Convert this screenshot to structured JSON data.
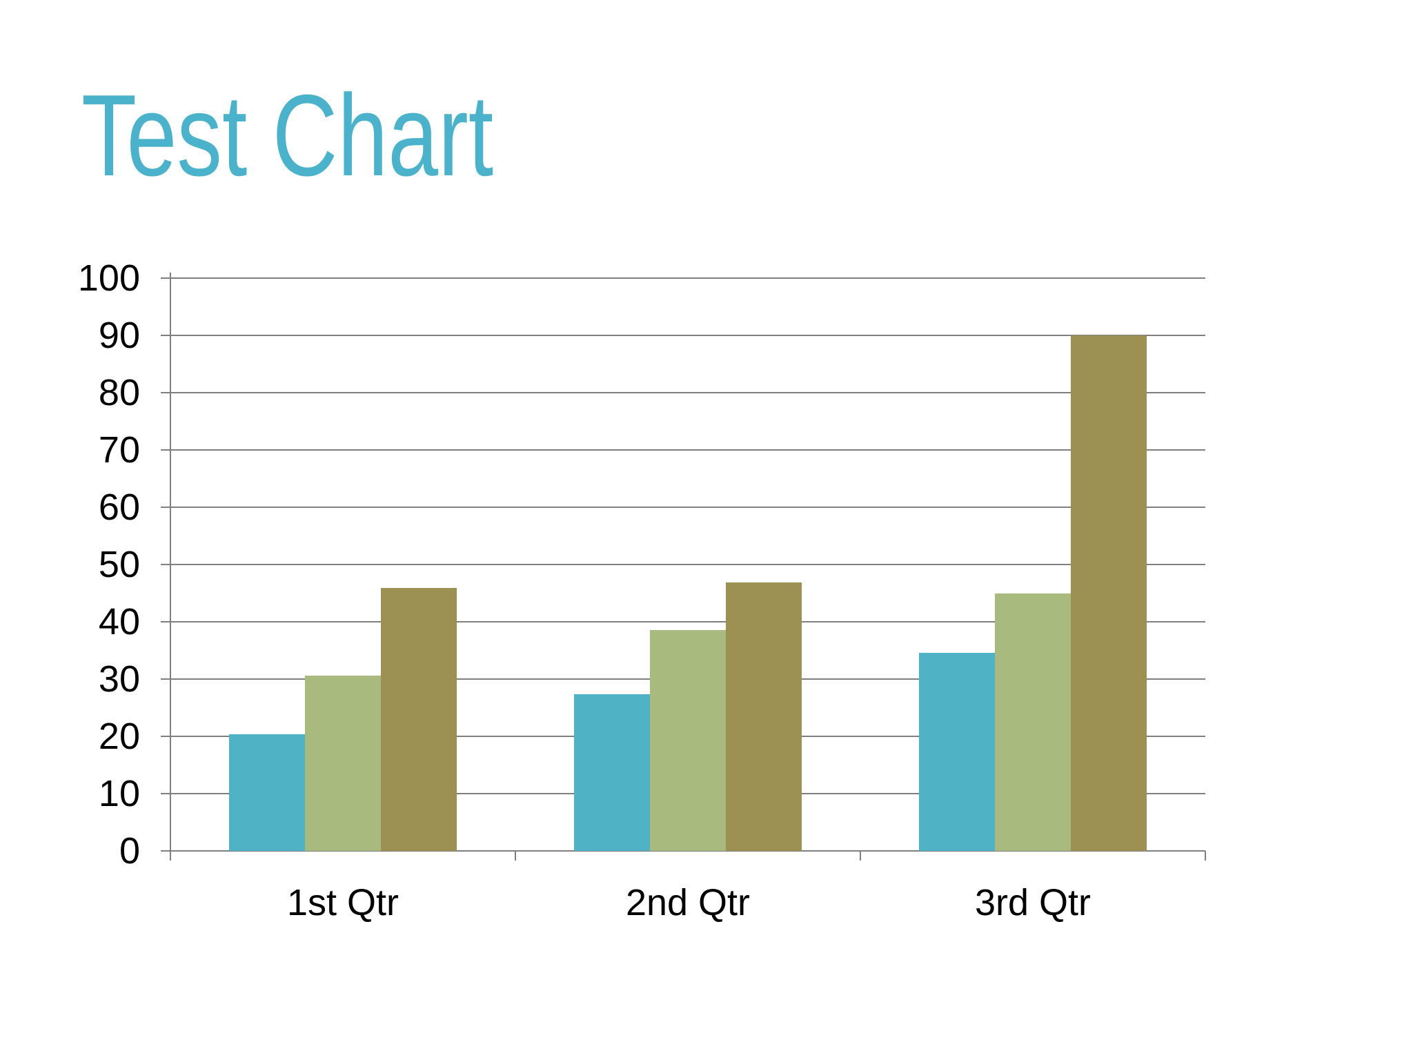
{
  "slide": {
    "title": "Test Chart"
  },
  "colors": {
    "background": "#ffffff",
    "title_text": "#4ab3cb",
    "axis_text": "#000000",
    "gridline": "#7f7f7f",
    "axis_line": "#7f7f7f"
  },
  "chart_data": {
    "type": "bar",
    "title": "Test Chart",
    "categories": [
      "1st Qtr",
      "2nd Qtr",
      "3rd Qtr"
    ],
    "series": [
      {
        "color": "#4fb2c5",
        "values": [
          20.4,
          27.4,
          34.6
        ]
      },
      {
        "color": "#a9ba7e",
        "values": [
          30.6,
          38.6,
          45
        ]
      },
      {
        "color": "#9c9152",
        "values": [
          45.9,
          46.9,
          90
        ]
      }
    ],
    "xlabel": "",
    "ylabel": "",
    "ylim": [
      0,
      100
    ],
    "ytick_step": 10,
    "yticklabels": [
      "0",
      "10",
      "20",
      "30",
      "40",
      "50",
      "60",
      "70",
      "80",
      "90",
      "100"
    ],
    "grid": true,
    "legend": false
  }
}
